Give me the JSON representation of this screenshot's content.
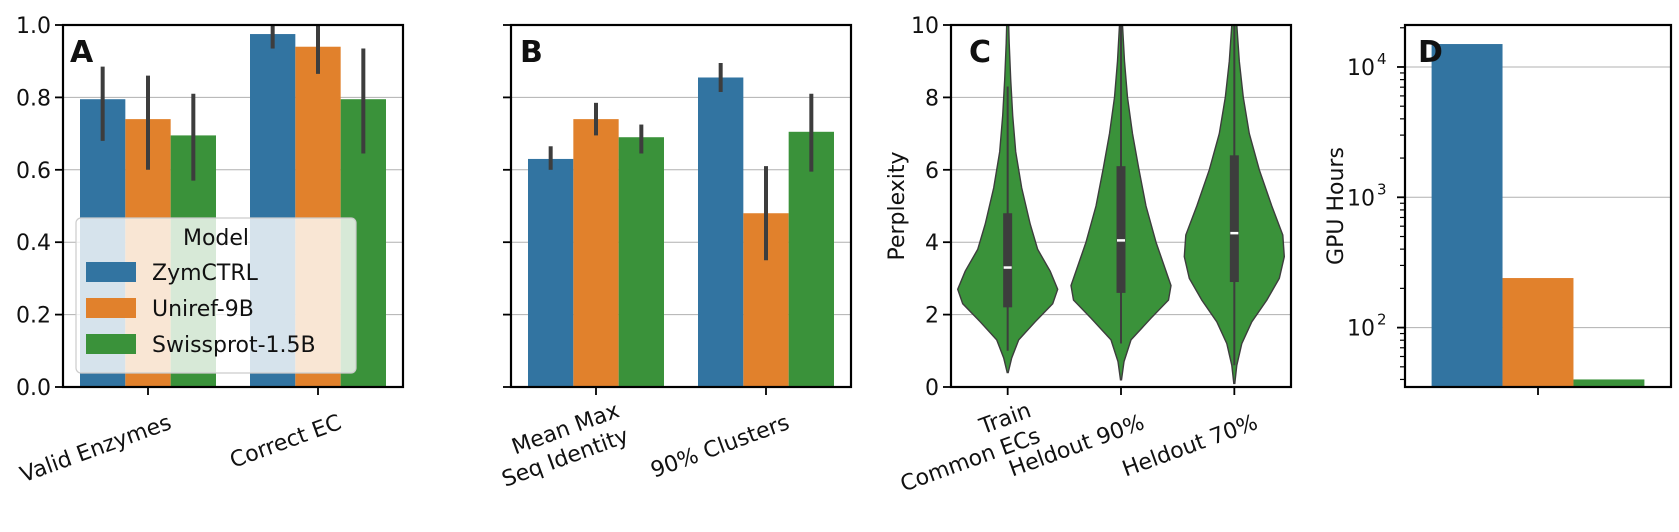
{
  "colors": {
    "ZymCTRL": "#3274a1",
    "Uniref-9B": "#e1812c",
    "Swissprot-1.5B": "#3a923a",
    "violin": "#3a923a",
    "errorbar": "#3d3d3d"
  },
  "chart_data": [
    {
      "panel": "A",
      "type": "bar",
      "categories": [
        "Valid Enzymes",
        "Correct EC"
      ],
      "series": [
        {
          "name": "ZymCTRL",
          "values": [
            0.795,
            0.975
          ],
          "err_low": [
            0.68,
            0.935
          ],
          "err_high": [
            0.885,
            1.0
          ]
        },
        {
          "name": "Uniref-9B",
          "values": [
            0.74,
            0.94
          ],
          "err_low": [
            0.6,
            0.865
          ],
          "err_high": [
            0.86,
            1.0
          ]
        },
        {
          "name": "Swissprot-1.5B",
          "values": [
            0.695,
            0.795
          ],
          "err_low": [
            0.57,
            0.645
          ],
          "err_high": [
            0.81,
            0.935
          ]
        }
      ],
      "ylim": [
        0,
        1.0
      ],
      "yticks": [
        "0.0",
        "0.2",
        "0.4",
        "0.6",
        "0.8",
        "1.0"
      ],
      "ytick_values": [
        0,
        0.2,
        0.4,
        0.6,
        0.8,
        1.0
      ],
      "legend": {
        "title": "Model",
        "entries": [
          "ZymCTRL",
          "Uniref-9B",
          "Swissprot-1.5B"
        ],
        "placement": "lower-left"
      }
    },
    {
      "panel": "B",
      "type": "bar",
      "categories": [
        "Mean Max\nSeq Identity",
        "90% Clusters"
      ],
      "series": [
        {
          "name": "ZymCTRL",
          "values": [
            0.63,
            0.855
          ],
          "err_low": [
            0.6,
            0.815
          ],
          "err_high": [
            0.665,
            0.895
          ]
        },
        {
          "name": "Uniref-9B",
          "values": [
            0.74,
            0.48
          ],
          "err_low": [
            0.695,
            0.35
          ],
          "err_high": [
            0.785,
            0.61
          ]
        },
        {
          "name": "Swissprot-1.5B",
          "values": [
            0.69,
            0.705
          ],
          "err_low": [
            0.645,
            0.595
          ],
          "err_high": [
            0.725,
            0.81
          ]
        }
      ],
      "ylim": [
        0,
        1.0
      ],
      "ytick_values": [
        0,
        0.2,
        0.4,
        0.6,
        0.8,
        1.0
      ]
    },
    {
      "panel": "C",
      "type": "violin",
      "categories": [
        "Train\nCommon ECs",
        "Heldout 90%",
        "Heldout 70%"
      ],
      "ylabel": "Perplexity",
      "ylim": [
        0,
        10
      ],
      "yticks": [
        "0",
        "2",
        "4",
        "6",
        "8",
        "10"
      ],
      "ytick_values": [
        0,
        2,
        4,
        6,
        8,
        10
      ],
      "violins": [
        {
          "min": 0.4,
          "max": 10,
          "q1": 2.2,
          "median": 3.3,
          "q3": 4.8,
          "whisker_low": 1.0,
          "whisker_high": 8.3,
          "profile": [
            [
              0.4,
              0.01
            ],
            [
              0.8,
              0.08
            ],
            [
              1.3,
              0.22
            ],
            [
              1.8,
              0.55
            ],
            [
              2.3,
              0.9
            ],
            [
              2.7,
              1.0
            ],
            [
              3.2,
              0.85
            ],
            [
              3.8,
              0.6
            ],
            [
              4.5,
              0.45
            ],
            [
              5.5,
              0.28
            ],
            [
              6.5,
              0.16
            ],
            [
              7.5,
              0.1
            ],
            [
              8.5,
              0.06
            ],
            [
              9.5,
              0.03
            ],
            [
              10,
              0.02
            ]
          ]
        },
        {
          "min": 0.2,
          "max": 10,
          "q1": 2.6,
          "median": 4.05,
          "q3": 6.1,
          "whisker_low": 1.2,
          "whisker_high": 10,
          "profile": [
            [
              0.2,
              0.01
            ],
            [
              0.7,
              0.06
            ],
            [
              1.3,
              0.2
            ],
            [
              1.9,
              0.6
            ],
            [
              2.4,
              0.95
            ],
            [
              2.8,
              1.0
            ],
            [
              3.4,
              0.85
            ],
            [
              4.0,
              0.7
            ],
            [
              5.0,
              0.5
            ],
            [
              6.0,
              0.36
            ],
            [
              7.0,
              0.23
            ],
            [
              8.0,
              0.13
            ],
            [
              9.0,
              0.07
            ],
            [
              10,
              0.03
            ]
          ]
        },
        {
          "min": 0.1,
          "max": 10,
          "q1": 2.9,
          "median": 4.25,
          "q3": 6.4,
          "whisker_low": 0.6,
          "whisker_high": 10,
          "profile": [
            [
              0.1,
              0.01
            ],
            [
              0.6,
              0.05
            ],
            [
              1.2,
              0.15
            ],
            [
              1.8,
              0.35
            ],
            [
              2.4,
              0.65
            ],
            [
              3.0,
              0.9
            ],
            [
              3.6,
              1.0
            ],
            [
              4.2,
              0.97
            ],
            [
              5.0,
              0.75
            ],
            [
              6.0,
              0.5
            ],
            [
              7.0,
              0.3
            ],
            [
              8.0,
              0.18
            ],
            [
              9.0,
              0.1
            ],
            [
              10,
              0.05
            ]
          ]
        }
      ]
    },
    {
      "panel": "D",
      "type": "bar",
      "scale": "log",
      "ylabel": "GPU Hours",
      "ylim": [
        35,
        21000
      ],
      "yticks": [
        {
          "base": "10",
          "exp": "2",
          "value": 100
        },
        {
          "base": "10",
          "exp": "3",
          "value": 1000
        },
        {
          "base": "10",
          "exp": "4",
          "value": 10000
        }
      ],
      "series": [
        {
          "name": "ZymCTRL",
          "value": 15000
        },
        {
          "name": "Uniref-9B",
          "value": 240
        },
        {
          "name": "Swissprot-1.5B",
          "value": 40
        }
      ]
    }
  ]
}
